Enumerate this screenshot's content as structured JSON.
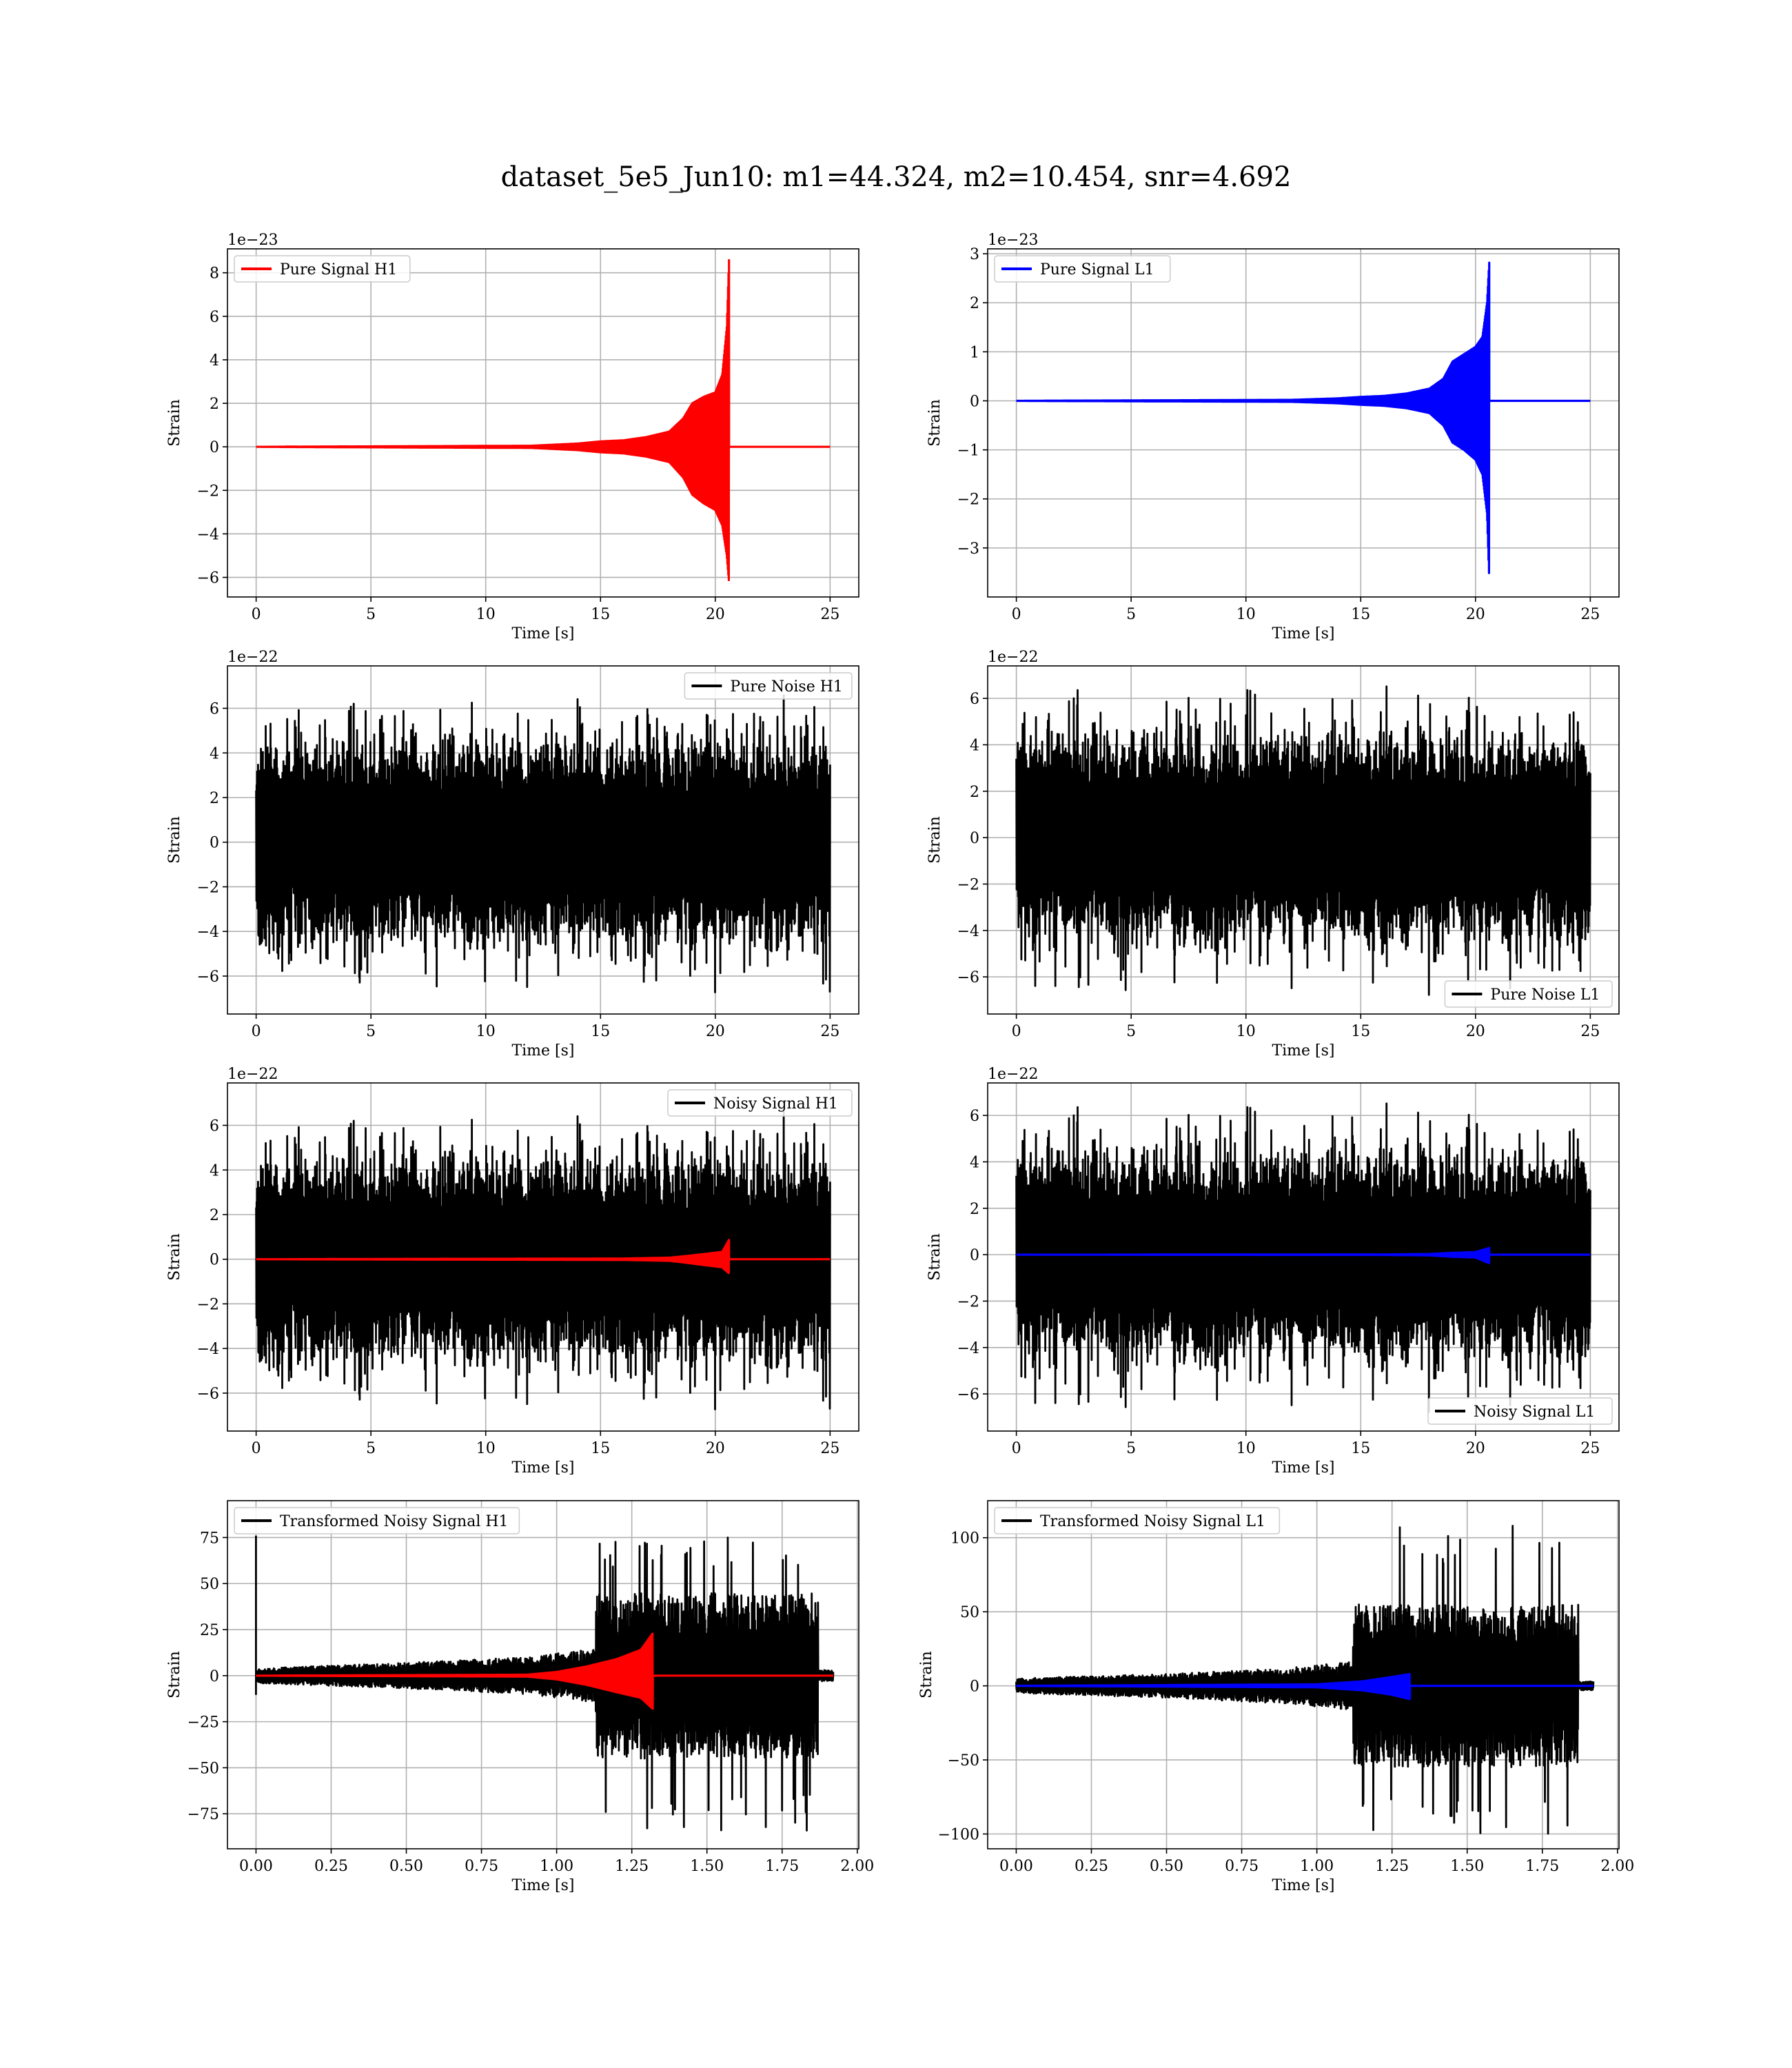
{
  "figure": {
    "suptitle": "dataset_5e5_Jun10: m1=44.324, m2=10.454, snr=4.692"
  },
  "chart_data": [
    {
      "id": "pure-signal-h1",
      "type": "line",
      "legend": [
        "Pure Signal H1"
      ],
      "legend_loc": "top-left",
      "xlabel": "Time [s]",
      "ylabel": "Strain",
      "offset": "1e−23",
      "xlim": [
        -1.25,
        26.25
      ],
      "ylim": [
        -6.9,
        9.1
      ],
      "xticks": [
        0,
        5,
        10,
        15,
        20,
        25
      ],
      "xtick_labels": [
        "0",
        "5",
        "10",
        "15",
        "20",
        "25"
      ],
      "yticks": [
        -6,
        -4,
        -2,
        0,
        2,
        4,
        6,
        8
      ],
      "ytick_labels": [
        "−6",
        "−4",
        "−2",
        "0",
        "2",
        "4",
        "6",
        "8"
      ],
      "grid": true,
      "series": [
        {
          "color": "#ff0000",
          "kind": "chirp",
          "t_start": 0,
          "t_end": 25,
          "t_merge": 20.6,
          "envelope": [
            [
              0,
              0
            ],
            [
              12,
              0.05
            ],
            [
              14,
              0.15
            ],
            [
              15,
              0.25
            ],
            [
              16,
              0.3
            ],
            [
              17,
              0.45
            ],
            [
              18,
              0.7
            ],
            [
              18.6,
              1.3
            ],
            [
              19.0,
              2.0
            ],
            [
              19.5,
              2.3
            ],
            [
              20.0,
              2.5
            ],
            [
              20.3,
              3.3
            ],
            [
              20.5,
              5.5
            ],
            [
              20.6,
              8.7
            ]
          ],
          "neg_envelope": [
            [
              0,
              0
            ],
            [
              12,
              -0.05
            ],
            [
              14,
              -0.15
            ],
            [
              15,
              -0.25
            ],
            [
              16,
              -0.3
            ],
            [
              17,
              -0.45
            ],
            [
              18,
              -0.7
            ],
            [
              18.6,
              -1.4
            ],
            [
              19.0,
              -2.2
            ],
            [
              19.5,
              -2.6
            ],
            [
              20.0,
              -2.9
            ],
            [
              20.3,
              -3.6
            ],
            [
              20.5,
              -5.0
            ],
            [
              20.6,
              -6.3
            ]
          ]
        }
      ]
    },
    {
      "id": "pure-signal-l1",
      "type": "line",
      "legend": [
        "Pure Signal L1"
      ],
      "legend_loc": "top-left",
      "xlabel": "Time [s]",
      "ylabel": "Strain",
      "offset": "1e−23",
      "xlim": [
        -1.25,
        26.25
      ],
      "ylim": [
        -4.0,
        3.1
      ],
      "xticks": [
        0,
        5,
        10,
        15,
        20,
        25
      ],
      "xtick_labels": [
        "0",
        "5",
        "10",
        "15",
        "20",
        "25"
      ],
      "yticks": [
        -3,
        -2,
        -1,
        0,
        1,
        2,
        3
      ],
      "ytick_labels": [
        "−3",
        "−2",
        "−1",
        "0",
        "1",
        "2",
        "3"
      ],
      "grid": true,
      "series": [
        {
          "color": "#0000ff",
          "kind": "chirp",
          "t_start": 0,
          "t_end": 25,
          "t_merge": 20.6,
          "envelope": [
            [
              0,
              0
            ],
            [
              12,
              0.02
            ],
            [
              14,
              0.05
            ],
            [
              15,
              0.08
            ],
            [
              16,
              0.1
            ],
            [
              17,
              0.15
            ],
            [
              18,
              0.25
            ],
            [
              18.6,
              0.45
            ],
            [
              19.0,
              0.8
            ],
            [
              19.5,
              0.95
            ],
            [
              20.0,
              1.1
            ],
            [
              20.3,
              1.3
            ],
            [
              20.5,
              2.0
            ],
            [
              20.6,
              2.85
            ]
          ],
          "neg_envelope": [
            [
              0,
              0
            ],
            [
              12,
              -0.02
            ],
            [
              14,
              -0.05
            ],
            [
              15,
              -0.08
            ],
            [
              16,
              -0.1
            ],
            [
              17,
              -0.15
            ],
            [
              18,
              -0.25
            ],
            [
              18.6,
              -0.5
            ],
            [
              19.0,
              -0.85
            ],
            [
              19.5,
              -1.0
            ],
            [
              20.0,
              -1.2
            ],
            [
              20.3,
              -1.5
            ],
            [
              20.5,
              -2.3
            ],
            [
              20.6,
              -3.7
            ]
          ]
        }
      ]
    },
    {
      "id": "pure-noise-h1",
      "type": "line",
      "legend": [
        "Pure Noise H1"
      ],
      "legend_loc": "top-right",
      "xlabel": "Time [s]",
      "ylabel": "Strain",
      "offset": "1e−22",
      "xlim": [
        -1.25,
        26.25
      ],
      "ylim": [
        -7.7,
        7.9
      ],
      "xticks": [
        0,
        5,
        10,
        15,
        20,
        25
      ],
      "xtick_labels": [
        "0",
        "5",
        "10",
        "15",
        "20",
        "25"
      ],
      "yticks": [
        -6,
        -4,
        -2,
        0,
        2,
        4,
        6
      ],
      "ytick_labels": [
        "−6",
        "−4",
        "−2",
        "0",
        "2",
        "4",
        "6"
      ],
      "grid": true,
      "series": [
        {
          "color": "#000000",
          "kind": "noise",
          "t_start": 0,
          "t_end": 25,
          "amp": 3.5,
          "spike_max": 6.0,
          "spike_min": -6.5,
          "seed": 11
        }
      ]
    },
    {
      "id": "pure-noise-l1",
      "type": "line",
      "legend": [
        "Pure Noise L1"
      ],
      "legend_loc": "bottom-right",
      "xlabel": "Time [s]",
      "ylabel": "Strain",
      "offset": "1e−22",
      "xlim": [
        -1.25,
        26.25
      ],
      "ylim": [
        -7.6,
        7.4
      ],
      "xticks": [
        0,
        5,
        10,
        15,
        20,
        25
      ],
      "xtick_labels": [
        "0",
        "5",
        "10",
        "15",
        "20",
        "25"
      ],
      "yticks": [
        -6,
        -4,
        -2,
        0,
        2,
        4,
        6
      ],
      "ytick_labels": [
        "−6",
        "−4",
        "−2",
        "0",
        "2",
        "4",
        "6"
      ],
      "grid": true,
      "series": [
        {
          "color": "#000000",
          "kind": "noise",
          "t_start": 0,
          "t_end": 25,
          "amp": 3.4,
          "spike_max": 6.5,
          "spike_min": -6.5,
          "seed": 23
        }
      ]
    },
    {
      "id": "noisy-signal-h1",
      "type": "line",
      "legend": [
        "Noisy Signal H1"
      ],
      "legend_loc": "top-right",
      "xlabel": "Time [s]",
      "ylabel": "Strain",
      "offset": "1e−22",
      "xlim": [
        -1.25,
        26.25
      ],
      "ylim": [
        -7.7,
        7.9
      ],
      "xticks": [
        0,
        5,
        10,
        15,
        20,
        25
      ],
      "xtick_labels": [
        "0",
        "5",
        "10",
        "15",
        "20",
        "25"
      ],
      "yticks": [
        -6,
        -4,
        -2,
        0,
        2,
        4,
        6
      ],
      "ytick_labels": [
        "−6",
        "−4",
        "−2",
        "0",
        "2",
        "4",
        "6"
      ],
      "grid": true,
      "series": [
        {
          "color": "#000000",
          "kind": "noise",
          "t_start": 0,
          "t_end": 25,
          "amp": 3.5,
          "spike_max": 6.0,
          "spike_min": -6.5,
          "seed": 11
        },
        {
          "color": "#ff0000",
          "kind": "chirp",
          "t_start": 0,
          "t_end": 25,
          "t_merge": 20.6,
          "envelope": [
            [
              0,
              0
            ],
            [
              16,
              0.03
            ],
            [
              18,
              0.07
            ],
            [
              18.6,
              0.13
            ],
            [
              19.5,
              0.23
            ],
            [
              20.3,
              0.33
            ],
            [
              20.6,
              0.87
            ]
          ],
          "neg_envelope": [
            [
              0,
              0
            ],
            [
              16,
              -0.03
            ],
            [
              18,
              -0.07
            ],
            [
              18.6,
              -0.14
            ],
            [
              19.5,
              -0.26
            ],
            [
              20.3,
              -0.36
            ],
            [
              20.6,
              -0.63
            ]
          ]
        }
      ]
    },
    {
      "id": "noisy-signal-l1",
      "type": "line",
      "legend": [
        "Noisy Signal L1"
      ],
      "legend_loc": "bottom-right",
      "xlabel": "Time [s]",
      "ylabel": "Strain",
      "offset": "1e−22",
      "xlim": [
        -1.25,
        26.25
      ],
      "ylim": [
        -7.6,
        7.4
      ],
      "xticks": [
        0,
        5,
        10,
        15,
        20,
        25
      ],
      "xtick_labels": [
        "0",
        "5",
        "10",
        "15",
        "20",
        "25"
      ],
      "yticks": [
        -6,
        -4,
        -2,
        0,
        2,
        4,
        6
      ],
      "ytick_labels": [
        "−6",
        "−4",
        "−2",
        "0",
        "2",
        "4",
        "6"
      ],
      "grid": true,
      "series": [
        {
          "color": "#000000",
          "kind": "noise",
          "t_start": 0,
          "t_end": 25,
          "amp": 3.4,
          "spike_max": 6.5,
          "spike_min": -6.5,
          "seed": 23
        },
        {
          "color": "#0000ff",
          "kind": "chirp",
          "t_start": 0,
          "t_end": 25,
          "t_merge": 20.6,
          "envelope": [
            [
              0,
              0
            ],
            [
              16,
              0.01
            ],
            [
              18,
              0.03
            ],
            [
              19.0,
              0.08
            ],
            [
              20.0,
              0.11
            ],
            [
              20.6,
              0.29
            ]
          ],
          "neg_envelope": [
            [
              0,
              0
            ],
            [
              16,
              -0.01
            ],
            [
              18,
              -0.03
            ],
            [
              19.0,
              -0.09
            ],
            [
              20.0,
              -0.12
            ],
            [
              20.6,
              -0.37
            ]
          ]
        }
      ]
    },
    {
      "id": "transformed-noisy-signal-h1",
      "type": "line",
      "legend": [
        "Transformed Noisy Signal H1"
      ],
      "legend_loc": "top-left",
      "xlabel": "Time [s]",
      "ylabel": "Strain",
      "offset": "",
      "xlim": [
        -0.095,
        2.005
      ],
      "ylim": [
        -94,
        95
      ],
      "xticks": [
        0,
        0.25,
        0.5,
        0.75,
        1.0,
        1.25,
        1.5,
        1.75,
        2.0
      ],
      "xtick_labels": [
        "0.00",
        "0.25",
        "0.50",
        "0.75",
        "1.00",
        "1.25",
        "1.50",
        "1.75",
        "2.00"
      ],
      "yticks": [
        -75,
        -50,
        -25,
        0,
        25,
        50,
        75
      ],
      "ytick_labels": [
        "−75",
        "−50",
        "−25",
        "0",
        "25",
        "50",
        "75"
      ],
      "grid": true,
      "series": [
        {
          "color": "#000000",
          "kind": "transformed",
          "t_start": 0,
          "t_end": 1.92,
          "t_jump": 1.13,
          "t_drop": 1.87,
          "amp_early": [
            [
              0,
              4
            ],
            [
              0.5,
              7
            ],
            [
              0.9,
              10
            ],
            [
              1.1,
              14
            ]
          ],
          "amp_late": 45,
          "spike_max": 75,
          "spike_min": -85,
          "first_spike": 76,
          "seed": 37
        },
        {
          "color": "#ff0000",
          "kind": "chirp",
          "t_start": 0,
          "t_end": 1.92,
          "t_merge": 1.32,
          "envelope": [
            [
              0,
              0
            ],
            [
              0.9,
              0.5
            ],
            [
              1.0,
              2
            ],
            [
              1.1,
              5
            ],
            [
              1.2,
              9
            ],
            [
              1.28,
              14
            ],
            [
              1.32,
              23
            ]
          ],
          "neg_envelope": [
            [
              0,
              0
            ],
            [
              0.9,
              -0.5
            ],
            [
              1.0,
              -2
            ],
            [
              1.1,
              -5
            ],
            [
              1.2,
              -9
            ],
            [
              1.28,
              -12
            ],
            [
              1.32,
              -18
            ]
          ]
        }
      ]
    },
    {
      "id": "transformed-noisy-signal-l1",
      "type": "line",
      "legend": [
        "Transformed Noisy Signal L1"
      ],
      "legend_loc": "top-left",
      "xlabel": "Time [s]",
      "ylabel": "Strain",
      "offset": "",
      "xlim": [
        -0.095,
        2.005
      ],
      "ylim": [
        -110,
        125
      ],
      "xticks": [
        0,
        0.25,
        0.5,
        0.75,
        1.0,
        1.25,
        1.5,
        1.75,
        2.0
      ],
      "xtick_labels": [
        "0.00",
        "0.25",
        "0.50",
        "0.75",
        "1.00",
        "1.25",
        "1.50",
        "1.75",
        "2.00"
      ],
      "yticks": [
        -100,
        -50,
        0,
        50,
        100
      ],
      "ytick_labels": [
        "−100",
        "−50",
        "0",
        "50",
        "100"
      ],
      "grid": true,
      "series": [
        {
          "color": "#000000",
          "kind": "transformed",
          "t_start": 0,
          "t_end": 1.92,
          "t_jump": 1.12,
          "t_drop": 1.87,
          "amp_early": [
            [
              0,
              5
            ],
            [
              0.5,
              8
            ],
            [
              0.9,
              12
            ],
            [
              1.1,
              16
            ]
          ],
          "amp_late": 55,
          "spike_max": 110,
          "spike_min": -100,
          "first_spike": 0,
          "seed": 53
        },
        {
          "color": "#0000ff",
          "kind": "chirp",
          "t_start": 0,
          "t_end": 1.92,
          "t_merge": 1.31,
          "envelope": [
            [
              0,
              0
            ],
            [
              1.0,
              1
            ],
            [
              1.15,
              3
            ],
            [
              1.25,
              6
            ],
            [
              1.31,
              8
            ]
          ],
          "neg_envelope": [
            [
              0,
              0
            ],
            [
              1.0,
              -1
            ],
            [
              1.15,
              -3
            ],
            [
              1.25,
              -6
            ],
            [
              1.31,
              -9
            ]
          ]
        }
      ]
    }
  ]
}
